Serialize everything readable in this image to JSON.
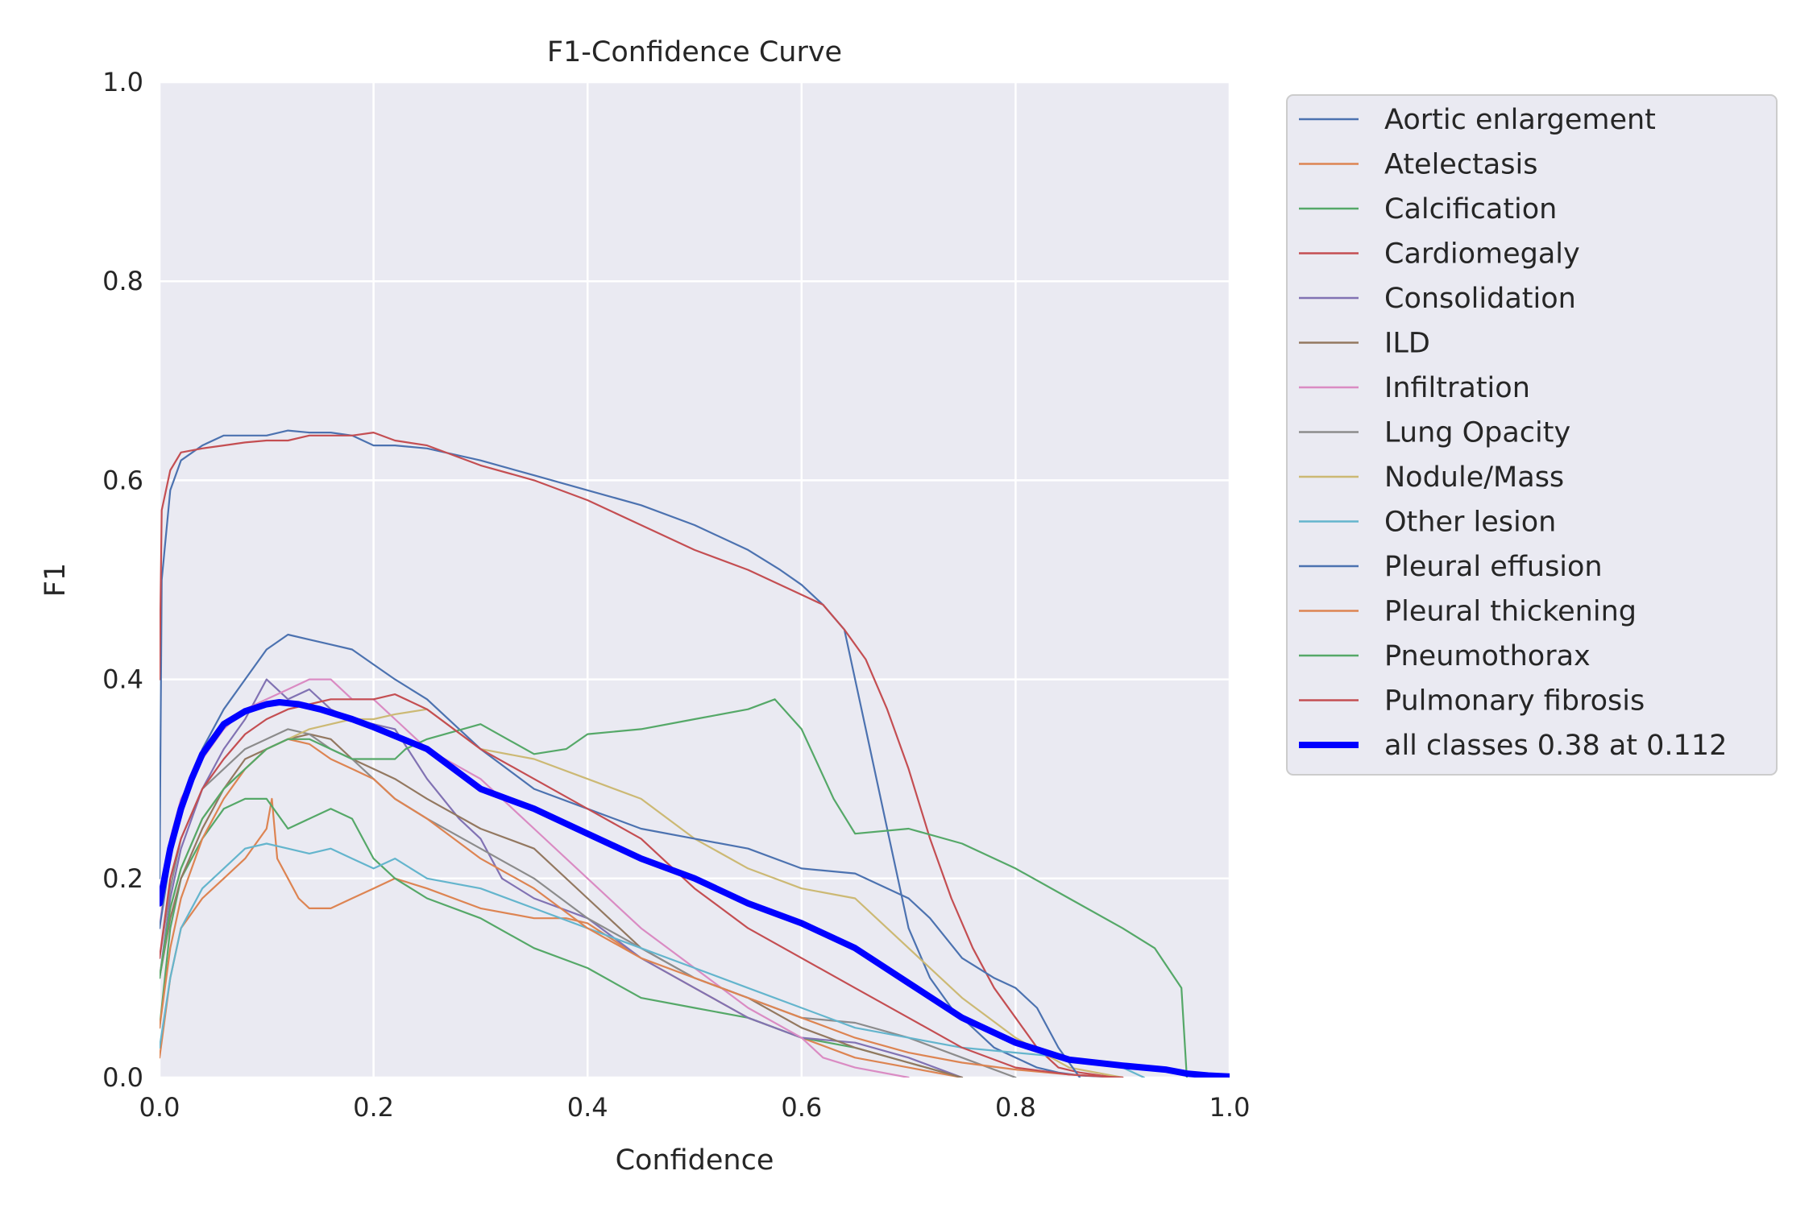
{
  "chart_data": {
    "type": "line",
    "title": "F1-Confidence Curve",
    "xlabel": "Confidence",
    "ylabel": "F1",
    "xlim": [
      0,
      1
    ],
    "ylim": [
      0,
      1
    ],
    "xticks": [
      "0.0",
      "0.2",
      "0.4",
      "0.6",
      "0.8",
      "1.0"
    ],
    "yticks": [
      "0.0",
      "0.2",
      "0.4",
      "0.6",
      "0.8",
      "1.0"
    ],
    "grid": true,
    "legend": "outside-right",
    "series": [
      {
        "name": "Aortic enlargement",
        "color": "#4c72b0",
        "x": [
          0,
          0.002,
          0.01,
          0.02,
          0.04,
          0.06,
          0.08,
          0.1,
          0.12,
          0.14,
          0.16,
          0.18,
          0.2,
          0.22,
          0.25,
          0.3,
          0.35,
          0.4,
          0.45,
          0.5,
          0.55,
          0.58,
          0.6,
          0.62,
          0.64,
          0.66,
          0.68,
          0.7,
          0.72,
          0.74,
          0.76,
          0.78,
          0.8,
          0.82,
          0.84,
          0.86,
          0.88,
          0.9
        ],
        "y": [
          0.2,
          0.5,
          0.59,
          0.62,
          0.635,
          0.645,
          0.645,
          0.645,
          0.65,
          0.648,
          0.648,
          0.645,
          0.635,
          0.635,
          0.632,
          0.62,
          0.605,
          0.59,
          0.575,
          0.555,
          0.53,
          0.51,
          0.495,
          0.475,
          0.45,
          0.35,
          0.25,
          0.15,
          0.1,
          0.07,
          0.05,
          0.03,
          0.02,
          0.01,
          0.005,
          0.002,
          0.001,
          0
        ]
      },
      {
        "name": "Atelectasis",
        "color": "#dd8452",
        "x": [
          0,
          0.01,
          0.02,
          0.04,
          0.06,
          0.08,
          0.1,
          0.105,
          0.11,
          0.12,
          0.13,
          0.14,
          0.16,
          0.18,
          0.2,
          0.22,
          0.25,
          0.3,
          0.35,
          0.38,
          0.4,
          0.45,
          0.5,
          0.55,
          0.6,
          0.65,
          0.7,
          0.75
        ],
        "y": [
          0.02,
          0.1,
          0.15,
          0.18,
          0.2,
          0.22,
          0.25,
          0.28,
          0.22,
          0.2,
          0.18,
          0.17,
          0.17,
          0.18,
          0.19,
          0.2,
          0.19,
          0.17,
          0.16,
          0.16,
          0.155,
          0.12,
          0.09,
          0.06,
          0.04,
          0.02,
          0.01,
          0
        ]
      },
      {
        "name": "Calcification",
        "color": "#55a868",
        "x": [
          0,
          0.01,
          0.02,
          0.04,
          0.06,
          0.08,
          0.1,
          0.12,
          0.14,
          0.16,
          0.18,
          0.2,
          0.22,
          0.25,
          0.3,
          0.35,
          0.4,
          0.45,
          0.5,
          0.55,
          0.6,
          0.65,
          0.7,
          0.75
        ],
        "y": [
          0.05,
          0.15,
          0.2,
          0.24,
          0.27,
          0.28,
          0.28,
          0.25,
          0.26,
          0.27,
          0.26,
          0.22,
          0.2,
          0.18,
          0.16,
          0.13,
          0.11,
          0.08,
          0.07,
          0.06,
          0.04,
          0.03,
          0.015,
          0
        ]
      },
      {
        "name": "Cardiomegaly",
        "color": "#c44e52",
        "x": [
          0,
          0.002,
          0.01,
          0.02,
          0.04,
          0.06,
          0.08,
          0.1,
          0.12,
          0.14,
          0.16,
          0.18,
          0.2,
          0.22,
          0.25,
          0.3,
          0.35,
          0.4,
          0.45,
          0.5,
          0.55,
          0.6,
          0.62,
          0.64,
          0.66,
          0.68,
          0.7,
          0.72,
          0.74,
          0.76,
          0.78,
          0.8,
          0.82,
          0.84,
          0.86,
          0.88,
          0.9
        ],
        "y": [
          0.4,
          0.57,
          0.61,
          0.628,
          0.632,
          0.635,
          0.638,
          0.64,
          0.64,
          0.645,
          0.645,
          0.645,
          0.648,
          0.64,
          0.635,
          0.615,
          0.6,
          0.58,
          0.555,
          0.53,
          0.51,
          0.485,
          0.475,
          0.45,
          0.42,
          0.37,
          0.31,
          0.24,
          0.18,
          0.13,
          0.09,
          0.06,
          0.03,
          0.01,
          0.005,
          0.002,
          0
        ]
      },
      {
        "name": "Consolidation",
        "color": "#8172b3",
        "x": [
          0,
          0.01,
          0.02,
          0.04,
          0.06,
          0.08,
          0.1,
          0.12,
          0.14,
          0.16,
          0.18,
          0.2,
          0.22,
          0.25,
          0.28,
          0.3,
          0.32,
          0.35,
          0.4,
          0.45,
          0.5,
          0.55,
          0.6,
          0.65,
          0.7,
          0.75
        ],
        "y": [
          0.1,
          0.18,
          0.23,
          0.29,
          0.33,
          0.36,
          0.4,
          0.38,
          0.39,
          0.37,
          0.36,
          0.355,
          0.35,
          0.3,
          0.26,
          0.24,
          0.2,
          0.18,
          0.16,
          0.12,
          0.09,
          0.06,
          0.04,
          0.035,
          0.02,
          0
        ]
      },
      {
        "name": "ILD",
        "color": "#937860",
        "x": [
          0,
          0.01,
          0.02,
          0.04,
          0.06,
          0.08,
          0.1,
          0.12,
          0.14,
          0.16,
          0.18,
          0.2,
          0.22,
          0.25,
          0.3,
          0.35,
          0.4,
          0.45,
          0.5,
          0.55,
          0.6,
          0.65,
          0.7,
          0.75
        ],
        "y": [
          0.1,
          0.16,
          0.2,
          0.25,
          0.29,
          0.32,
          0.33,
          0.34,
          0.345,
          0.34,
          0.32,
          0.31,
          0.3,
          0.28,
          0.25,
          0.23,
          0.18,
          0.13,
          0.1,
          0.08,
          0.05,
          0.03,
          0.015,
          0
        ]
      },
      {
        "name": "Infiltration",
        "color": "#da8bc3",
        "x": [
          0,
          0.01,
          0.02,
          0.04,
          0.06,
          0.08,
          0.1,
          0.12,
          0.14,
          0.16,
          0.18,
          0.2,
          0.22,
          0.25,
          0.3,
          0.35,
          0.4,
          0.45,
          0.5,
          0.55,
          0.6,
          0.62,
          0.65,
          0.7
        ],
        "y": [
          0.15,
          0.24,
          0.28,
          0.32,
          0.35,
          0.37,
          0.38,
          0.39,
          0.4,
          0.4,
          0.38,
          0.38,
          0.36,
          0.33,
          0.3,
          0.25,
          0.2,
          0.15,
          0.11,
          0.07,
          0.04,
          0.02,
          0.01,
          0
        ]
      },
      {
        "name": "Lung Opacity",
        "color": "#8c8c8c",
        "x": [
          0,
          0.01,
          0.02,
          0.04,
          0.06,
          0.08,
          0.1,
          0.12,
          0.14,
          0.16,
          0.18,
          0.2,
          0.22,
          0.25,
          0.3,
          0.35,
          0.4,
          0.45,
          0.5,
          0.55,
          0.6,
          0.65,
          0.7,
          0.75,
          0.8
        ],
        "y": [
          0.12,
          0.19,
          0.24,
          0.29,
          0.31,
          0.33,
          0.34,
          0.35,
          0.345,
          0.33,
          0.32,
          0.3,
          0.28,
          0.26,
          0.23,
          0.2,
          0.16,
          0.13,
          0.1,
          0.08,
          0.06,
          0.055,
          0.04,
          0.02,
          0
        ]
      },
      {
        "name": "Nodule/Mass",
        "color": "#ccb974",
        "x": [
          0,
          0.01,
          0.02,
          0.04,
          0.06,
          0.08,
          0.1,
          0.12,
          0.14,
          0.16,
          0.18,
          0.2,
          0.22,
          0.25,
          0.3,
          0.35,
          0.4,
          0.45,
          0.5,
          0.55,
          0.6,
          0.65,
          0.7,
          0.75,
          0.8,
          0.85,
          0.9
        ],
        "y": [
          0.1,
          0.17,
          0.21,
          0.26,
          0.29,
          0.31,
          0.33,
          0.34,
          0.35,
          0.355,
          0.36,
          0.36,
          0.365,
          0.37,
          0.33,
          0.32,
          0.3,
          0.28,
          0.24,
          0.21,
          0.19,
          0.18,
          0.13,
          0.08,
          0.04,
          0.01,
          0
        ]
      },
      {
        "name": "Other lesion",
        "color": "#64b5cd",
        "x": [
          0,
          0.01,
          0.02,
          0.04,
          0.06,
          0.08,
          0.1,
          0.12,
          0.14,
          0.16,
          0.18,
          0.2,
          0.22,
          0.25,
          0.3,
          0.35,
          0.4,
          0.45,
          0.5,
          0.55,
          0.6,
          0.65,
          0.7,
          0.75,
          0.8,
          0.85,
          0.9,
          0.92
        ],
        "y": [
          0.03,
          0.1,
          0.15,
          0.19,
          0.21,
          0.23,
          0.235,
          0.23,
          0.225,
          0.23,
          0.22,
          0.21,
          0.22,
          0.2,
          0.19,
          0.17,
          0.15,
          0.13,
          0.11,
          0.09,
          0.07,
          0.05,
          0.04,
          0.03,
          0.025,
          0.02,
          0.01,
          0
        ]
      },
      {
        "name": "Pleural effusion",
        "color": "#4c72b0",
        "x": [
          0,
          0.01,
          0.02,
          0.04,
          0.06,
          0.08,
          0.1,
          0.12,
          0.14,
          0.16,
          0.18,
          0.2,
          0.22,
          0.25,
          0.3,
          0.35,
          0.4,
          0.45,
          0.5,
          0.55,
          0.6,
          0.65,
          0.7,
          0.72,
          0.75,
          0.78,
          0.8,
          0.82,
          0.84,
          0.86
        ],
        "y": [
          0.15,
          0.22,
          0.27,
          0.33,
          0.37,
          0.4,
          0.43,
          0.445,
          0.44,
          0.435,
          0.43,
          0.415,
          0.4,
          0.38,
          0.33,
          0.29,
          0.27,
          0.25,
          0.24,
          0.23,
          0.21,
          0.205,
          0.18,
          0.16,
          0.12,
          0.1,
          0.09,
          0.07,
          0.03,
          0
        ]
      },
      {
        "name": "Pleural thickening",
        "color": "#dd8452",
        "x": [
          0,
          0.01,
          0.02,
          0.04,
          0.06,
          0.08,
          0.1,
          0.12,
          0.14,
          0.16,
          0.18,
          0.2,
          0.22,
          0.25,
          0.3,
          0.35,
          0.4,
          0.45,
          0.5,
          0.55,
          0.6,
          0.65,
          0.7,
          0.75,
          0.8,
          0.85,
          0.9
        ],
        "y": [
          0.05,
          0.13,
          0.18,
          0.24,
          0.28,
          0.31,
          0.33,
          0.34,
          0.335,
          0.32,
          0.31,
          0.3,
          0.28,
          0.26,
          0.22,
          0.19,
          0.15,
          0.12,
          0.1,
          0.08,
          0.06,
          0.04,
          0.025,
          0.015,
          0.008,
          0.003,
          0
        ]
      },
      {
        "name": "Pneumothorax",
        "color": "#55a868",
        "x": [
          0,
          0.01,
          0.02,
          0.04,
          0.06,
          0.08,
          0.1,
          0.12,
          0.14,
          0.16,
          0.18,
          0.2,
          0.22,
          0.23,
          0.25,
          0.3,
          0.35,
          0.38,
          0.4,
          0.45,
          0.5,
          0.55,
          0.575,
          0.6,
          0.63,
          0.65,
          0.7,
          0.75,
          0.8,
          0.85,
          0.9,
          0.93,
          0.955,
          0.96
        ],
        "y": [
          0.1,
          0.17,
          0.21,
          0.26,
          0.29,
          0.31,
          0.33,
          0.34,
          0.34,
          0.33,
          0.32,
          0.32,
          0.32,
          0.33,
          0.34,
          0.355,
          0.325,
          0.33,
          0.345,
          0.35,
          0.36,
          0.37,
          0.38,
          0.35,
          0.28,
          0.245,
          0.25,
          0.235,
          0.21,
          0.18,
          0.15,
          0.13,
          0.09,
          0
        ]
      },
      {
        "name": "Pulmonary fibrosis",
        "color": "#c44e52",
        "x": [
          0,
          0.01,
          0.02,
          0.04,
          0.06,
          0.08,
          0.1,
          0.12,
          0.14,
          0.16,
          0.18,
          0.2,
          0.22,
          0.25,
          0.3,
          0.35,
          0.4,
          0.45,
          0.5,
          0.55,
          0.6,
          0.65,
          0.7,
          0.75,
          0.8,
          0.85,
          0.9
        ],
        "y": [
          0.12,
          0.2,
          0.24,
          0.29,
          0.32,
          0.345,
          0.36,
          0.37,
          0.375,
          0.38,
          0.38,
          0.38,
          0.385,
          0.37,
          0.33,
          0.3,
          0.27,
          0.24,
          0.19,
          0.15,
          0.12,
          0.09,
          0.06,
          0.03,
          0.01,
          0.003,
          0
        ]
      },
      {
        "name": "all classes 0.38 at 0.112",
        "color": "#0000ff",
        "bold": true,
        "x": [
          0,
          0.01,
          0.02,
          0.03,
          0.04,
          0.05,
          0.06,
          0.08,
          0.1,
          0.112,
          0.13,
          0.15,
          0.18,
          0.2,
          0.25,
          0.3,
          0.35,
          0.4,
          0.45,
          0.5,
          0.55,
          0.6,
          0.65,
          0.7,
          0.75,
          0.8,
          0.85,
          0.9,
          0.94,
          0.96,
          0.98,
          1.0
        ],
        "y": [
          0.175,
          0.23,
          0.27,
          0.3,
          0.325,
          0.34,
          0.355,
          0.368,
          0.375,
          0.377,
          0.375,
          0.37,
          0.36,
          0.352,
          0.33,
          0.29,
          0.27,
          0.245,
          0.22,
          0.2,
          0.175,
          0.155,
          0.13,
          0.095,
          0.06,
          0.035,
          0.018,
          0.012,
          0.008,
          0.004,
          0.002,
          0.001
        ]
      }
    ]
  }
}
